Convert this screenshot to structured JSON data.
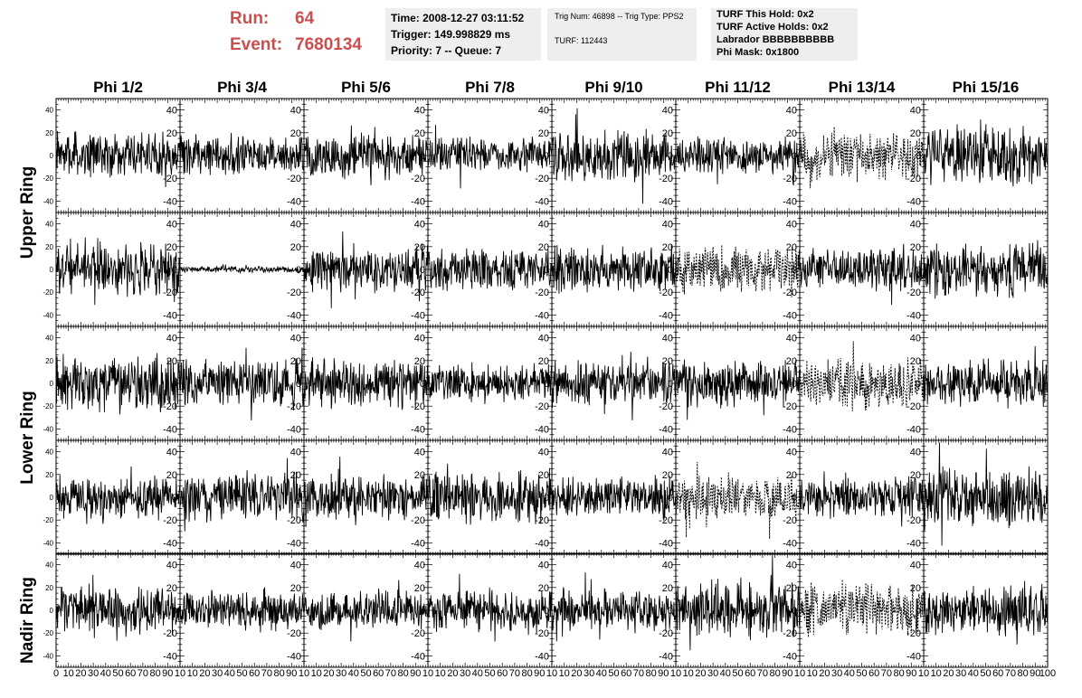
{
  "header": {
    "run_label": "Run:",
    "run_value": "64",
    "event_label": "Event:",
    "event_value": "7680134"
  },
  "info_boxes": [
    {
      "lines": [
        "Time: 2008-12-27 03:11:52",
        "Trigger: 149.998829 ms",
        "Priority: 7 -- Queue: 7"
      ]
    },
    {
      "lines": [
        "Trig Num: 46898 -- Trig Type: PPS2",
        "TURF: 112443"
      ]
    },
    {
      "lines": [
        "TURF This Hold: 0x2",
        "TURF Active Holds: 0x2",
        "Labrador BBBBBBBBBB",
        "Phi Mask: 0x1800"
      ]
    }
  ],
  "colors": {
    "accent_red": "#cc4e4e",
    "box_bg": "#eeeeee",
    "trace": "#000000"
  },
  "chart_data": {
    "type": "line",
    "title": "",
    "columns": [
      "Phi 1/2",
      "Phi 3/4",
      "Phi 5/6",
      "Phi 7/8",
      "Phi 9/10",
      "Phi 11/12",
      "Phi 13/14",
      "Phi 15/16"
    ],
    "rows": [
      "Upper Ring",
      "Upper Ring",
      "Lower Ring",
      "Lower Ring",
      "Nadir Ring"
    ],
    "row_labels": [
      {
        "text": "Upper Ring"
      },
      {
        "text": "Lower Ring"
      },
      {
        "text": "Nadir Ring"
      }
    ],
    "xlim": [
      0,
      100
    ],
    "ylim": [
      -50,
      50
    ],
    "yticks": [
      -40,
      -20,
      0,
      20,
      40
    ],
    "xticks": [
      0,
      10,
      20,
      30,
      40,
      50,
      60,
      70,
      80,
      90,
      100
    ],
    "x_tick_labels_row": [
      "0",
      "10",
      "20",
      "30",
      "40",
      "50",
      "60",
      "70",
      "80",
      "90",
      "10"
    ],
    "last_x_tick_label": "100",
    "samples": 260,
    "panels": [
      {
        "row": 0,
        "col": 0,
        "amp": 14,
        "style": "solid"
      },
      {
        "row": 0,
        "col": 1,
        "amp": 12,
        "style": "solid"
      },
      {
        "row": 0,
        "col": 2,
        "amp": 14,
        "style": "solid"
      },
      {
        "row": 0,
        "col": 3,
        "amp": 11,
        "style": "solid"
      },
      {
        "row": 0,
        "col": 4,
        "amp": 16,
        "style": "solid"
      },
      {
        "row": 0,
        "col": 5,
        "amp": 11,
        "style": "solid"
      },
      {
        "row": 0,
        "col": 6,
        "amp": 14,
        "style": "dashed"
      },
      {
        "row": 0,
        "col": 7,
        "amp": 18,
        "style": "solid"
      },
      {
        "row": 1,
        "col": 0,
        "amp": 16,
        "style": "solid"
      },
      {
        "row": 1,
        "col": 1,
        "amp": 2,
        "style": "solid"
      },
      {
        "row": 1,
        "col": 2,
        "amp": 15,
        "style": "solid"
      },
      {
        "row": 1,
        "col": 3,
        "amp": 13,
        "style": "solid"
      },
      {
        "row": 1,
        "col": 4,
        "amp": 14,
        "style": "solid"
      },
      {
        "row": 1,
        "col": 5,
        "amp": 15,
        "style": "dashed"
      },
      {
        "row": 1,
        "col": 6,
        "amp": 13,
        "style": "solid"
      },
      {
        "row": 1,
        "col": 7,
        "amp": 17,
        "style": "solid"
      },
      {
        "row": 2,
        "col": 0,
        "amp": 18,
        "style": "solid"
      },
      {
        "row": 2,
        "col": 1,
        "amp": 15,
        "style": "solid"
      },
      {
        "row": 2,
        "col": 2,
        "amp": 15,
        "style": "solid"
      },
      {
        "row": 2,
        "col": 3,
        "amp": 12,
        "style": "solid"
      },
      {
        "row": 2,
        "col": 4,
        "amp": 14,
        "style": "solid"
      },
      {
        "row": 2,
        "col": 5,
        "amp": 15,
        "style": "solid"
      },
      {
        "row": 2,
        "col": 6,
        "amp": 16,
        "style": "dashed"
      },
      {
        "row": 2,
        "col": 7,
        "amp": 15,
        "style": "solid"
      },
      {
        "row": 3,
        "col": 0,
        "amp": 13,
        "style": "solid"
      },
      {
        "row": 3,
        "col": 1,
        "amp": 15,
        "style": "solid"
      },
      {
        "row": 3,
        "col": 2,
        "amp": 14,
        "style": "solid"
      },
      {
        "row": 3,
        "col": 3,
        "amp": 17,
        "style": "solid"
      },
      {
        "row": 3,
        "col": 4,
        "amp": 13,
        "style": "solid"
      },
      {
        "row": 3,
        "col": 5,
        "amp": 14,
        "style": "dashed"
      },
      {
        "row": 3,
        "col": 6,
        "amp": 13,
        "style": "solid"
      },
      {
        "row": 3,
        "col": 7,
        "amp": 19,
        "style": "solid"
      },
      {
        "row": 4,
        "col": 0,
        "amp": 15,
        "style": "solid"
      },
      {
        "row": 4,
        "col": 1,
        "amp": 12,
        "style": "solid"
      },
      {
        "row": 4,
        "col": 2,
        "amp": 12,
        "style": "solid"
      },
      {
        "row": 4,
        "col": 3,
        "amp": 14,
        "style": "solid"
      },
      {
        "row": 4,
        "col": 4,
        "amp": 13,
        "style": "solid"
      },
      {
        "row": 4,
        "col": 5,
        "amp": 18,
        "style": "solid"
      },
      {
        "row": 4,
        "col": 6,
        "amp": 16,
        "style": "dashed"
      },
      {
        "row": 4,
        "col": 7,
        "amp": 15,
        "style": "solid"
      }
    ]
  }
}
